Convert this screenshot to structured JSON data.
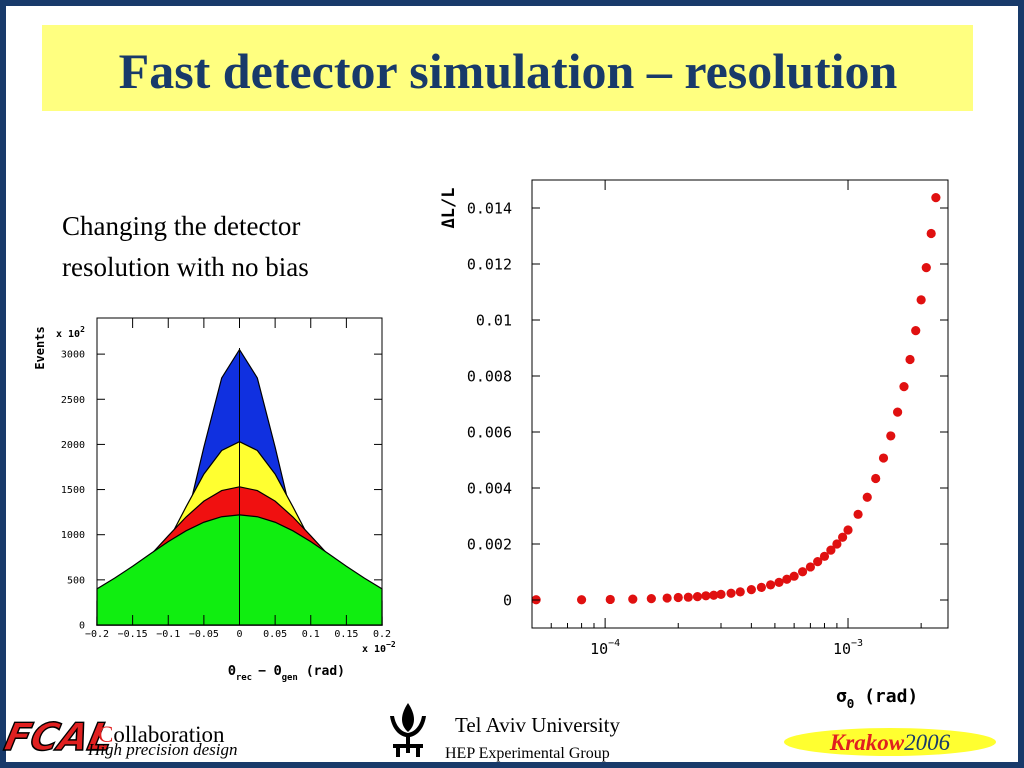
{
  "slide": {
    "title": "Fast detector simulation – resolution",
    "body": [
      "Changing the detector",
      "resolution with no bias"
    ],
    "footer": {
      "logo": "FCAL",
      "collab_initial": "C",
      "collab_rest": "ollaboration",
      "tagline": "High precision design",
      "university": "Tel Aviv University",
      "group": "HEP Experimental Group",
      "city": "Krakow",
      "year": "2006"
    }
  },
  "chart_data": [
    {
      "type": "area",
      "ylabel": "Events",
      "ymultiplier": {
        "base": "x 10",
        "exp": "2"
      },
      "xmultiplier": {
        "base": "x 10",
        "exp": "−2"
      },
      "xlabel": {
        "sym1": "Θ",
        "sub1": "rec",
        "sym2": "− Θ",
        "sub2": "gen",
        "unit": "(rad)"
      },
      "x": [
        -0.2,
        -0.175,
        -0.15,
        -0.125,
        -0.1,
        -0.075,
        -0.05,
        -0.025,
        0,
        0.025,
        0.05,
        0.075,
        0.1,
        0.125,
        0.15,
        0.175,
        0.2
      ],
      "series": [
        {
          "color": "#1030e0",
          "values": [
            3,
            14,
            60,
            198,
            531,
            1141,
            1970,
            2736,
            3050,
            2736,
            1970,
            1141,
            531,
            198,
            60,
            14,
            3
          ]
        },
        {
          "color": "#ffff30",
          "values": [
            89,
            186,
            349,
            599,
            930,
            1309,
            1671,
            1933,
            2030,
            1933,
            1671,
            1309,
            930,
            599,
            349,
            186,
            89
          ]
        },
        {
          "color": "#f01010",
          "values": [
            266,
            402,
            572,
            774,
            988,
            1196,
            1372,
            1489,
            1530,
            1489,
            1372,
            1196,
            988,
            774,
            572,
            402,
            266
          ]
        },
        {
          "color": "#10ee10",
          "values": [
            400,
            520,
            651,
            789,
            924,
            1043,
            1138,
            1199,
            1220,
            1199,
            1138,
            1043,
            924,
            789,
            651,
            520,
            400
          ]
        }
      ],
      "xlim": [
        -0.2,
        0.2
      ],
      "ylim": [
        0,
        3400
      ],
      "xticks": [
        {
          "value": -0.2,
          "label": "−0.2"
        },
        {
          "value": -0.15,
          "label": "−0.15"
        },
        {
          "value": -0.1,
          "label": "−0.1"
        },
        {
          "value": -0.05,
          "label": "−0.05"
        },
        0,
        0.05,
        0.1,
        0.15,
        0.2
      ],
      "yticks": [
        0,
        500,
        1000,
        1500,
        2000,
        2500,
        3000
      ]
    },
    {
      "type": "scatter",
      "ylabel": "ΔL/L",
      "xlabel": {
        "sym": "σ",
        "sub": "Θ",
        "unit": "(rad)"
      },
      "log_x": true,
      "color": "#e01010",
      "x": [
        5.2e-05,
        8e-05,
        0.000105,
        0.00013,
        0.000155,
        0.00018,
        0.0002,
        0.00022,
        0.00024,
        0.00026,
        0.00028,
        0.0003,
        0.00033,
        0.00036,
        0.0004,
        0.00044,
        0.00048,
        0.00052,
        0.00056,
        0.0006,
        0.00065,
        0.0007,
        0.00075,
        0.0008,
        0.00085,
        0.0009,
        0.00095,
        0.001,
        0.0011,
        0.0012,
        0.0013,
        0.0014,
        0.0015,
        0.0016,
        0.0017,
        0.0018,
        0.0019,
        0.002,
        0.0021,
        0.0022,
        0.0023
      ],
      "values": [
        1e-05,
        1e-05,
        2e-05,
        3e-05,
        5e-05,
        7e-05,
        9e-05,
        0.0001,
        0.00012,
        0.00015,
        0.00017,
        0.0002,
        0.00024,
        0.00029,
        0.00037,
        0.00045,
        0.00054,
        0.00063,
        0.00074,
        0.00085,
        0.00101,
        0.00118,
        0.00137,
        0.00156,
        0.00178,
        0.002,
        0.00224,
        0.0025,
        0.00306,
        0.00367,
        0.00434,
        0.00507,
        0.00586,
        0.00671,
        0.00762,
        0.00859,
        0.00962,
        0.01072,
        0.01187,
        0.01309,
        0.01437
      ],
      "xlim": [
        5e-05,
        0.00258
      ],
      "ylim": [
        -0.001,
        0.015
      ],
      "xticks": [
        {
          "value": 0.0001,
          "label": "10",
          "exp": "−4"
        },
        {
          "value": 0.001,
          "label": "10",
          "exp": "−3"
        }
      ],
      "yticks": [
        0,
        0.002,
        0.004,
        0.006,
        0.008,
        0.01,
        0.012,
        0.014
      ]
    }
  ]
}
